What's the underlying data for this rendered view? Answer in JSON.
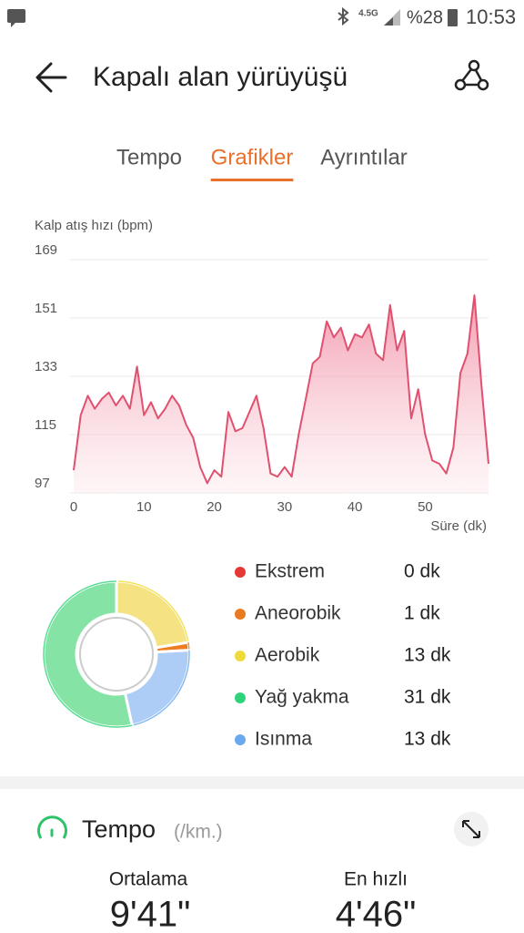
{
  "status_bar": {
    "network": "4.5G",
    "battery": "%28",
    "time": "10:53"
  },
  "header": {
    "title": "Kapalı alan yürüyüşü"
  },
  "tabs": {
    "items": [
      "Tempo",
      "Grafikler",
      "Ayrıntılar"
    ],
    "active": 1
  },
  "chart_data": [
    {
      "type": "line",
      "y_label": "Kalp atış hızı (bpm)",
      "x_label": "Süre (dk)",
      "x": [
        0,
        1,
        2,
        3,
        4,
        5,
        6,
        7,
        8,
        9,
        10,
        11,
        12,
        13,
        14,
        15,
        16,
        17,
        18,
        19,
        20,
        21,
        22,
        23,
        24,
        25,
        26,
        27,
        28,
        29,
        30,
        31,
        32,
        33,
        34,
        35,
        36,
        37,
        38,
        39,
        40,
        41,
        42,
        43,
        44,
        45,
        46,
        47,
        48,
        49,
        50,
        51,
        52,
        53,
        54,
        55,
        56,
        57,
        58,
        59
      ],
      "series": [
        {
          "color": "#e0506f",
          "values": [
            104,
            121,
            127,
            123,
            126,
            128,
            124,
            127,
            123,
            136,
            121,
            125,
            120,
            123,
            127,
            124,
            118,
            114,
            105,
            100,
            104,
            102,
            122,
            116,
            117,
            122,
            127,
            117,
            103,
            102,
            105,
            102,
            115,
            126,
            137,
            139,
            150,
            145,
            148,
            141,
            146,
            145,
            149,
            140,
            138,
            155,
            141,
            147,
            120,
            129,
            115,
            107,
            106,
            103,
            111,
            134,
            140,
            158,
            130,
            106
          ]
        }
      ],
      "xlim": [
        0,
        59
      ],
      "ylim": [
        97,
        169
      ],
      "xticks": [
        0,
        10,
        20,
        30,
        40,
        50
      ],
      "yticks": [
        97,
        115,
        133,
        151,
        169
      ],
      "grid": true
    },
    {
      "type": "pie",
      "categories": [
        "Ekstrem",
        "Aneorobik",
        "Aerobik",
        "Yağ yakma",
        "Isınma"
      ],
      "values": [
        0,
        1,
        13,
        31,
        13
      ],
      "value_labels": [
        "0 dk",
        "1 dk",
        "13 dk",
        "31 dk",
        "13 dk"
      ],
      "colors": [
        "#e53935",
        "#ee7d22",
        "#f5e383",
        "#86e3a6",
        "#aecdf6"
      ],
      "legend_colors": [
        "#e53935",
        "#e87a1f",
        "#f0d93a",
        "#2fd47a",
        "#6aa9f0"
      ]
    }
  ],
  "tempo": {
    "title": "Tempo",
    "unit": "(/km.)",
    "stats": [
      {
        "label": "Ortalama",
        "value": "9'41\""
      },
      {
        "label": "En hızlı",
        "value": "4'46\""
      }
    ]
  }
}
